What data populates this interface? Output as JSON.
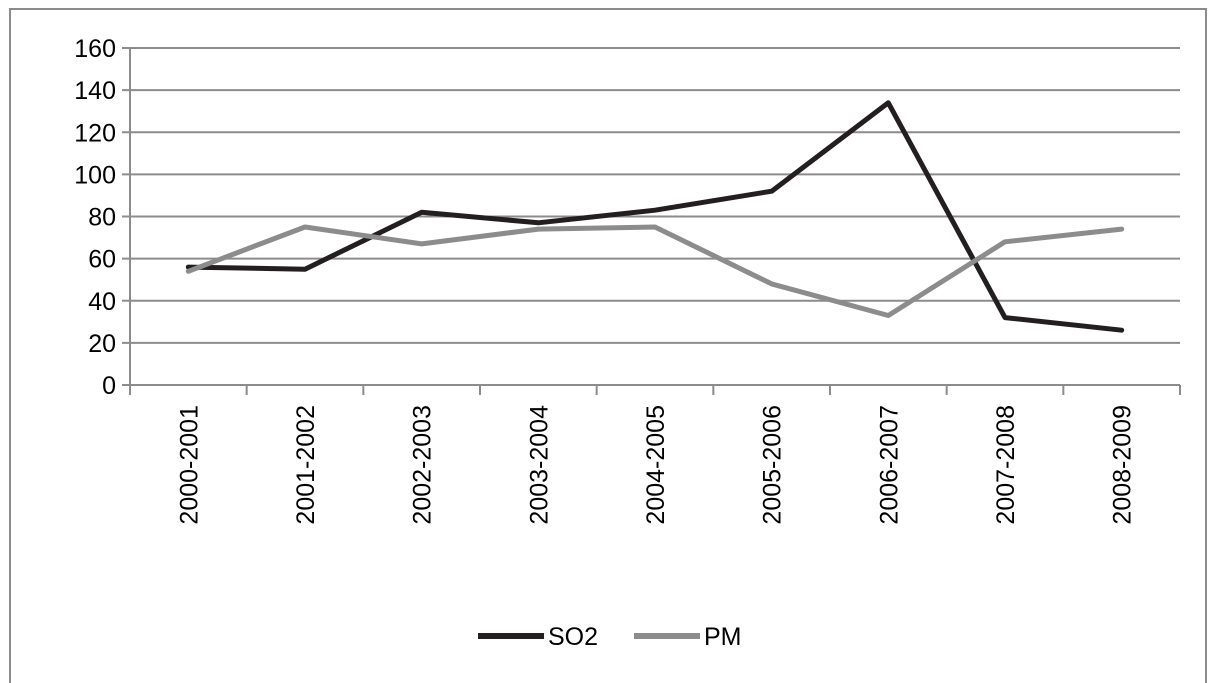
{
  "chart_data": {
    "type": "line",
    "categories": [
      "2000-2001",
      "2001-2002",
      "2002-2003",
      "2003-2004",
      "2004-2005",
      "2005-2006",
      "2006-2007",
      "2007-2008",
      "2008-2009"
    ],
    "series": [
      {
        "name": "SO2",
        "color": "#231f20",
        "values": [
          56,
          55,
          82,
          77,
          83,
          92,
          134,
          32,
          26
        ]
      },
      {
        "name": "PM",
        "color": "#8c8c8c",
        "values": [
          54,
          75,
          67,
          74,
          75,
          48,
          33,
          68,
          74
        ]
      }
    ],
    "ylim": [
      0,
      160
    ],
    "yticks": [
      "0",
      "20",
      "40",
      "60",
      "80",
      "100",
      "120",
      "140",
      "160"
    ],
    "grid": true,
    "legend_position": "bottom"
  }
}
